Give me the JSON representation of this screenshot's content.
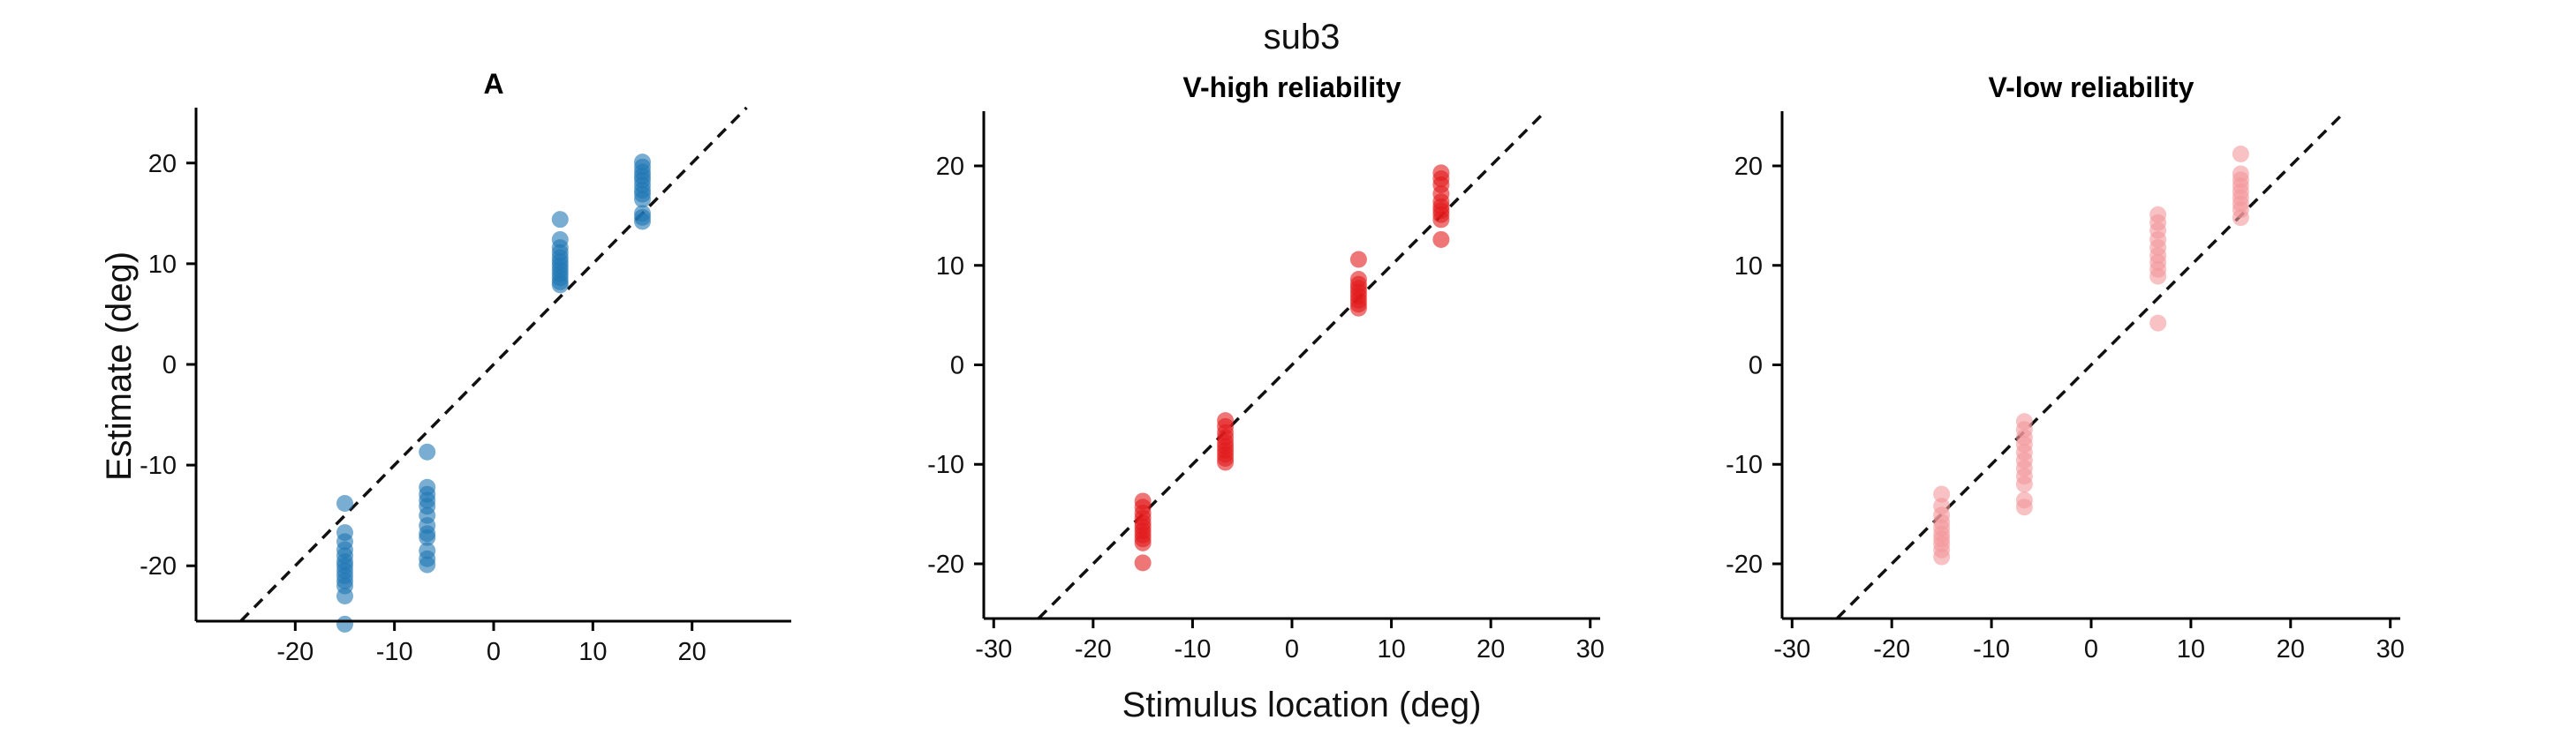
{
  "figure": {
    "suptitle": "sub3",
    "xlabel": "Stimulus location (deg)",
    "ylabel": "Estimate (deg)"
  },
  "chart_data": [
    {
      "type": "scatter",
      "title": "A",
      "color": "#1f77b4",
      "ylim": [
        -25.5,
        25.5
      ],
      "xlim": [
        -30,
        30
      ],
      "xticks": [
        -20,
        -10,
        0,
        10,
        20
      ],
      "yticks": [
        -20,
        -10,
        0,
        10,
        20
      ],
      "reference_line": "identity (dashed)",
      "grid": false,
      "series": [
        {
          "points": [
            [
              -15,
              -13.8
            ],
            [
              -15,
              -16.7
            ],
            [
              -15,
              -17.6
            ],
            [
              -15,
              -18.4
            ],
            [
              -15,
              -19.0
            ],
            [
              -15,
              -19.6
            ],
            [
              -15,
              -20.0
            ],
            [
              -15,
              -20.5
            ],
            [
              -15,
              -21.0
            ],
            [
              -15,
              -21.5
            ],
            [
              -15,
              -22.0
            ],
            [
              -15,
              -23.0
            ],
            [
              -15,
              -25.8
            ],
            [
              -6.7,
              -8.7
            ],
            [
              -6.7,
              -12.2
            ],
            [
              -6.7,
              -12.9
            ],
            [
              -6.7,
              -13.5
            ],
            [
              -6.7,
              -14.1
            ],
            [
              -6.7,
              -15.0
            ],
            [
              -6.7,
              -16.0
            ],
            [
              -6.7,
              -16.8
            ],
            [
              -6.7,
              -17.2
            ],
            [
              -6.7,
              -18.5
            ],
            [
              -6.7,
              -19.3
            ],
            [
              -6.7,
              -19.9
            ],
            [
              6.7,
              14.4
            ],
            [
              6.7,
              12.4
            ],
            [
              6.7,
              11.6
            ],
            [
              6.7,
              11.1
            ],
            [
              6.7,
              10.6
            ],
            [
              6.7,
              10.2
            ],
            [
              6.7,
              9.8
            ],
            [
              6.7,
              9.4
            ],
            [
              6.7,
              9.0
            ],
            [
              6.7,
              8.6
            ],
            [
              6.7,
              8.2
            ],
            [
              6.7,
              7.9
            ],
            [
              15,
              20.1
            ],
            [
              15,
              19.6
            ],
            [
              15,
              19.1
            ],
            [
              15,
              18.7
            ],
            [
              15,
              18.3
            ],
            [
              15,
              17.8
            ],
            [
              15,
              17.3
            ],
            [
              15,
              16.9
            ],
            [
              15,
              16.4
            ],
            [
              15,
              15.0
            ],
            [
              15,
              14.6
            ],
            [
              15,
              14.2
            ]
          ]
        }
      ]
    },
    {
      "type": "scatter",
      "title": "V-high reliability",
      "color": "#e31a1c",
      "ylim": [
        -25.5,
        25.5
      ],
      "xlim": [
        -31,
        31
      ],
      "xticks": [
        -30,
        -20,
        -10,
        0,
        10,
        20,
        30
      ],
      "yticks": [
        -20,
        -10,
        0,
        10,
        20
      ],
      "reference_line": "identity (dashed)",
      "grid": false,
      "series": [
        {
          "points": [
            [
              -15,
              -13.7
            ],
            [
              -15,
              -14.3
            ],
            [
              -15,
              -14.9
            ],
            [
              -15,
              -15.4
            ],
            [
              -15,
              -15.9
            ],
            [
              -15,
              -16.3
            ],
            [
              -15,
              -16.7
            ],
            [
              -15,
              -17.1
            ],
            [
              -15,
              -17.5
            ],
            [
              -15,
              -17.9
            ],
            [
              -15,
              -19.9
            ],
            [
              -6.7,
              -5.6
            ],
            [
              -6.7,
              -6.2
            ],
            [
              -6.7,
              -6.8
            ],
            [
              -6.7,
              -7.3
            ],
            [
              -6.7,
              -7.8
            ],
            [
              -6.7,
              -8.2
            ],
            [
              -6.7,
              -8.6
            ],
            [
              -6.7,
              -9.0
            ],
            [
              -6.7,
              -9.4
            ],
            [
              -6.7,
              -9.8
            ],
            [
              6.7,
              10.6
            ],
            [
              6.7,
              8.6
            ],
            [
              6.7,
              8.1
            ],
            [
              6.7,
              7.7
            ],
            [
              6.7,
              7.3
            ],
            [
              6.7,
              6.9
            ],
            [
              6.7,
              6.5
            ],
            [
              6.7,
              6.1
            ],
            [
              6.7,
              5.7
            ],
            [
              15,
              19.3
            ],
            [
              15,
              18.7
            ],
            [
              15,
              18.1
            ],
            [
              15,
              17.2
            ],
            [
              15,
              16.4
            ],
            [
              15,
              15.9
            ],
            [
              15,
              15.5
            ],
            [
              15,
              15.1
            ],
            [
              15,
              14.6
            ],
            [
              15,
              12.6
            ]
          ]
        }
      ]
    },
    {
      "type": "scatter",
      "title": "V-low reliability",
      "color": "#f4989b",
      "ylim": [
        -25.5,
        25.5
      ],
      "xlim": [
        -31,
        31
      ],
      "xticks": [
        -30,
        -20,
        -10,
        0,
        10,
        20,
        30
      ],
      "yticks": [
        -20,
        -10,
        0,
        10,
        20
      ],
      "reference_line": "identity (dashed)",
      "grid": false,
      "series": [
        {
          "points": [
            [
              -15,
              -13.0
            ],
            [
              -15,
              -14.2
            ],
            [
              -15,
              -15.1
            ],
            [
              -15,
              -15.8
            ],
            [
              -15,
              -16.4
            ],
            [
              -15,
              -17.0
            ],
            [
              -15,
              -17.5
            ],
            [
              -15,
              -18.0
            ],
            [
              -15,
              -18.6
            ],
            [
              -15,
              -19.3
            ],
            [
              -6.7,
              -5.7
            ],
            [
              -6.7,
              -6.5
            ],
            [
              -6.7,
              -7.3
            ],
            [
              -6.7,
              -8.0
            ],
            [
              -6.7,
              -8.8
            ],
            [
              -6.7,
              -9.6
            ],
            [
              -6.7,
              -10.4
            ],
            [
              -6.7,
              -11.2
            ],
            [
              -6.7,
              -12.0
            ],
            [
              -6.7,
              -13.6
            ],
            [
              -6.7,
              -14.3
            ],
            [
              6.7,
              15.1
            ],
            [
              6.7,
              14.3
            ],
            [
              6.7,
              13.5
            ],
            [
              6.7,
              12.6
            ],
            [
              6.7,
              11.8
            ],
            [
              6.7,
              11.0
            ],
            [
              6.7,
              10.3
            ],
            [
              6.7,
              9.6
            ],
            [
              6.7,
              8.9
            ],
            [
              6.7,
              4.2
            ],
            [
              15,
              21.2
            ],
            [
              15,
              19.2
            ],
            [
              15,
              18.6
            ],
            [
              15,
              18.0
            ],
            [
              15,
              17.4
            ],
            [
              15,
              16.8
            ],
            [
              15,
              16.2
            ],
            [
              15,
              15.6
            ],
            [
              15,
              14.8
            ]
          ]
        }
      ]
    }
  ]
}
